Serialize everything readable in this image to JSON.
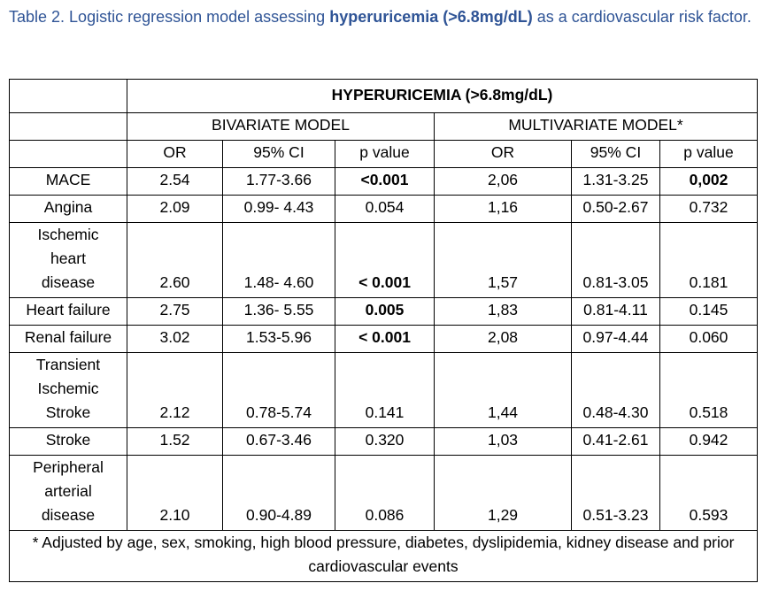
{
  "caption": {
    "prefix": "Table 2. Logistic regression model assessing ",
    "bold": "hyperuricemia (>6.8mg/dL)",
    "suffix": " as a cardiovascular risk factor."
  },
  "table": {
    "group_header": "HYPERURICEMIA (>6.8mg/dL)",
    "model_headers": [
      "BIVARIATE MODEL",
      "MULTIVARIATE MODEL*"
    ],
    "column_headers": [
      "OR",
      "95% CI",
      "p value",
      "OR",
      "95% CI",
      "p value"
    ],
    "rows": [
      {
        "label": "MACE",
        "values": [
          "2.54",
          "1.77-3.66",
          "<0.001",
          "2,06",
          "1.31-3.25",
          "0,002"
        ],
        "bold": [
          false,
          false,
          true,
          false,
          false,
          true
        ]
      },
      {
        "label": "Angina",
        "values": [
          "2.09",
          "0.99- 4.43",
          "0.054",
          "1,16",
          "0.50-2.67",
          "0.732"
        ],
        "bold": [
          false,
          false,
          false,
          false,
          false,
          false
        ]
      },
      {
        "label": "Ischemic\nheart\ndisease",
        "values": [
          "2.60",
          "1.48- 4.60",
          "< 0.001",
          "1,57",
          "0.81-3.05",
          "0.181"
        ],
        "bold": [
          false,
          false,
          true,
          false,
          false,
          false
        ]
      },
      {
        "label": "Heart failure",
        "values": [
          "2.75",
          "1.36- 5.55",
          "0.005",
          "1,83",
          "0.81-4.11",
          "0.145"
        ],
        "bold": [
          false,
          false,
          true,
          false,
          false,
          false
        ]
      },
      {
        "label": "Renal failure",
        "values": [
          "3.02",
          "1.53-5.96",
          "< 0.001",
          "2,08",
          "0.97-4.44",
          "0.060"
        ],
        "bold": [
          false,
          false,
          true,
          false,
          false,
          false
        ]
      },
      {
        "label": "Transient\nIschemic\nStroke",
        "values": [
          "2.12",
          "0.78-5.74",
          "0.141",
          "1,44",
          "0.48-4.30",
          "0.518"
        ],
        "bold": [
          false,
          false,
          false,
          false,
          false,
          false
        ]
      },
      {
        "label": "Stroke",
        "values": [
          "1.52",
          "0.67-3.46",
          "0.320",
          "1,03",
          "0.41-2.61",
          "0.942"
        ],
        "bold": [
          false,
          false,
          false,
          false,
          false,
          false
        ]
      },
      {
        "label": "Peripheral\narterial\ndisease",
        "values": [
          "2.10",
          "0.90-4.89",
          "0.086",
          "1,29",
          "0.51-3.23",
          "0.593"
        ],
        "bold": [
          false,
          false,
          false,
          false,
          false,
          false
        ]
      }
    ],
    "footnote": "* Adjusted by age, sex, smoking, high blood pressure, diabetes, dyslipidemia, kidney disease and prior cardiovascular events"
  }
}
